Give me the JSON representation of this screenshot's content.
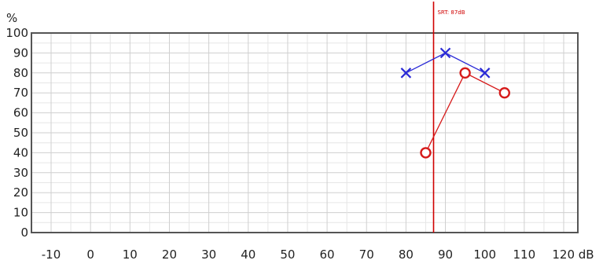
{
  "chart_data": {
    "type": "scatter",
    "x_unit": "dB",
    "y_unit": "%",
    "xlim": [
      -10,
      120
    ],
    "ylim": [
      0,
      100
    ],
    "x_ticks": [
      -10,
      0,
      10,
      20,
      30,
      40,
      50,
      60,
      70,
      80,
      90,
      100,
      110,
      120
    ],
    "y_ticks": [
      0,
      10,
      20,
      30,
      40,
      50,
      60,
      70,
      80,
      90,
      100
    ],
    "grid": true,
    "series": [
      {
        "marker": "x",
        "color": "#2a2ad6",
        "points": [
          {
            "x": 80,
            "y": 80
          },
          {
            "x": 90,
            "y": 90
          },
          {
            "x": 100,
            "y": 80
          }
        ]
      },
      {
        "marker": "o",
        "color": "#d61a1a",
        "points": [
          {
            "x": 85,
            "y": 40
          },
          {
            "x": 95,
            "y": 80
          },
          {
            "x": 105,
            "y": 70
          }
        ]
      }
    ],
    "reference_line": {
      "x": 87,
      "label": "SRT: 87dB",
      "color": "#d00000"
    }
  }
}
